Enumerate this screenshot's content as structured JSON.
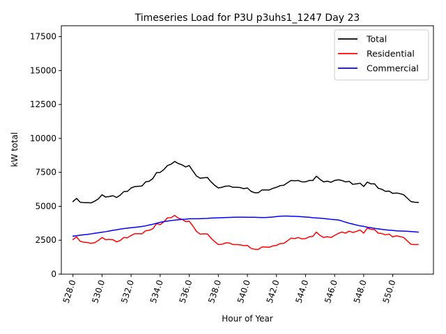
{
  "chart_data": {
    "type": "line",
    "title": "Timeseries Load for P3U p3uhs1_1247  Day 23",
    "xlabel": "Hour of Year",
    "ylabel": "kW total",
    "xlim": [
      527.2,
      552.8
    ],
    "ylim": [
      0,
      18300
    ],
    "x_ticks": [
      528,
      530,
      532,
      534,
      536,
      538,
      540,
      542,
      544,
      546,
      548,
      550
    ],
    "x_tick_labels": [
      "528.0",
      "530.0",
      "532.0",
      "534.0",
      "536.0",
      "538.0",
      "540.0",
      "542.0",
      "544.0",
      "546.0",
      "548.0",
      "550.0"
    ],
    "y_ticks": [
      0,
      2500,
      5000,
      7500,
      10000,
      12500,
      15000,
      17500
    ],
    "y_tick_labels": [
      "0",
      "2500",
      "5000",
      "7500",
      "10000",
      "12500",
      "15000",
      "17500"
    ],
    "grid": false,
    "legend_position": "top-right",
    "x_start": 528.0,
    "x_step": 0.25,
    "series": [
      {
        "name": "Total",
        "color": "#000000",
        "values": [
          5350,
          5580,
          5300,
          5270,
          5270,
          5250,
          5380,
          5550,
          5850,
          5680,
          5720,
          5780,
          5650,
          5820,
          6080,
          6100,
          6350,
          6450,
          6470,
          6500,
          6800,
          6850,
          7050,
          7480,
          7500,
          7700,
          8000,
          8100,
          8300,
          8150,
          8050,
          7900,
          8000,
          7600,
          7230,
          7070,
          7100,
          7120,
          6800,
          6550,
          6350,
          6400,
          6480,
          6500,
          6400,
          6400,
          6380,
          6300,
          6350,
          6100,
          6000,
          6000,
          6200,
          6200,
          6200,
          6320,
          6400,
          6520,
          6550,
          6730,
          6900,
          6880,
          6900,
          6800,
          6800,
          6900,
          6900,
          7220,
          6980,
          6800,
          6850,
          6770,
          6900,
          6950,
          6900,
          6800,
          6840,
          6620,
          6650,
          6700,
          6460,
          6780,
          6650,
          6650,
          6330,
          6250,
          6100,
          6120,
          5950,
          5980,
          5930,
          5850,
          5600,
          5350,
          5300,
          5280
        ]
      },
      {
        "name": "Residential",
        "color": "#ff0000",
        "values": [
          2550,
          2750,
          2420,
          2350,
          2330,
          2270,
          2320,
          2480,
          2700,
          2540,
          2560,
          2540,
          2380,
          2480,
          2700,
          2680,
          2850,
          2980,
          2980,
          2970,
          3200,
          3230,
          3350,
          3720,
          3650,
          3850,
          4150,
          4160,
          4330,
          4120,
          4050,
          3870,
          3900,
          3550,
          3150,
          2950,
          2970,
          2960,
          2650,
          2400,
          2180,
          2200,
          2300,
          2300,
          2180,
          2180,
          2160,
          2100,
          2120,
          1900,
          1830,
          1820,
          2000,
          2000,
          1980,
          2080,
          2120,
          2250,
          2270,
          2450,
          2650,
          2620,
          2700,
          2600,
          2620,
          2750,
          2780,
          3100,
          2850,
          2700,
          2760,
          2700,
          2850,
          3000,
          3100,
          3020,
          3170,
          3070,
          3150,
          3250,
          3020,
          3400,
          3300,
          3280,
          3020,
          2990,
          2900,
          2950,
          2750,
          2820,
          2770,
          2700,
          2450,
          2200,
          2180,
          2180
        ]
      },
      {
        "name": "Commercial",
        "color": "#0000ff",
        "values": [
          2800,
          2830,
          2870,
          2900,
          2930,
          2970,
          3010,
          3050,
          3090,
          3130,
          3180,
          3230,
          3270,
          3320,
          3360,
          3390,
          3420,
          3450,
          3480,
          3510,
          3560,
          3620,
          3680,
          3750,
          3820,
          3870,
          3910,
          3950,
          3980,
          4010,
          4030,
          4050,
          4080,
          4080,
          4080,
          4090,
          4100,
          4110,
          4130,
          4140,
          4150,
          4160,
          4170,
          4180,
          4190,
          4200,
          4200,
          4200,
          4190,
          4190,
          4190,
          4180,
          4170,
          4170,
          4190,
          4210,
          4240,
          4270,
          4280,
          4280,
          4270,
          4260,
          4250,
          4230,
          4210,
          4190,
          4160,
          4140,
          4120,
          4100,
          4070,
          4040,
          4020,
          3990,
          3920,
          3830,
          3750,
          3690,
          3620,
          3560,
          3520,
          3460,
          3420,
          3370,
          3340,
          3300,
          3270,
          3240,
          3220,
          3190,
          3180,
          3170,
          3160,
          3140,
          3120,
          3100
        ]
      }
    ]
  }
}
